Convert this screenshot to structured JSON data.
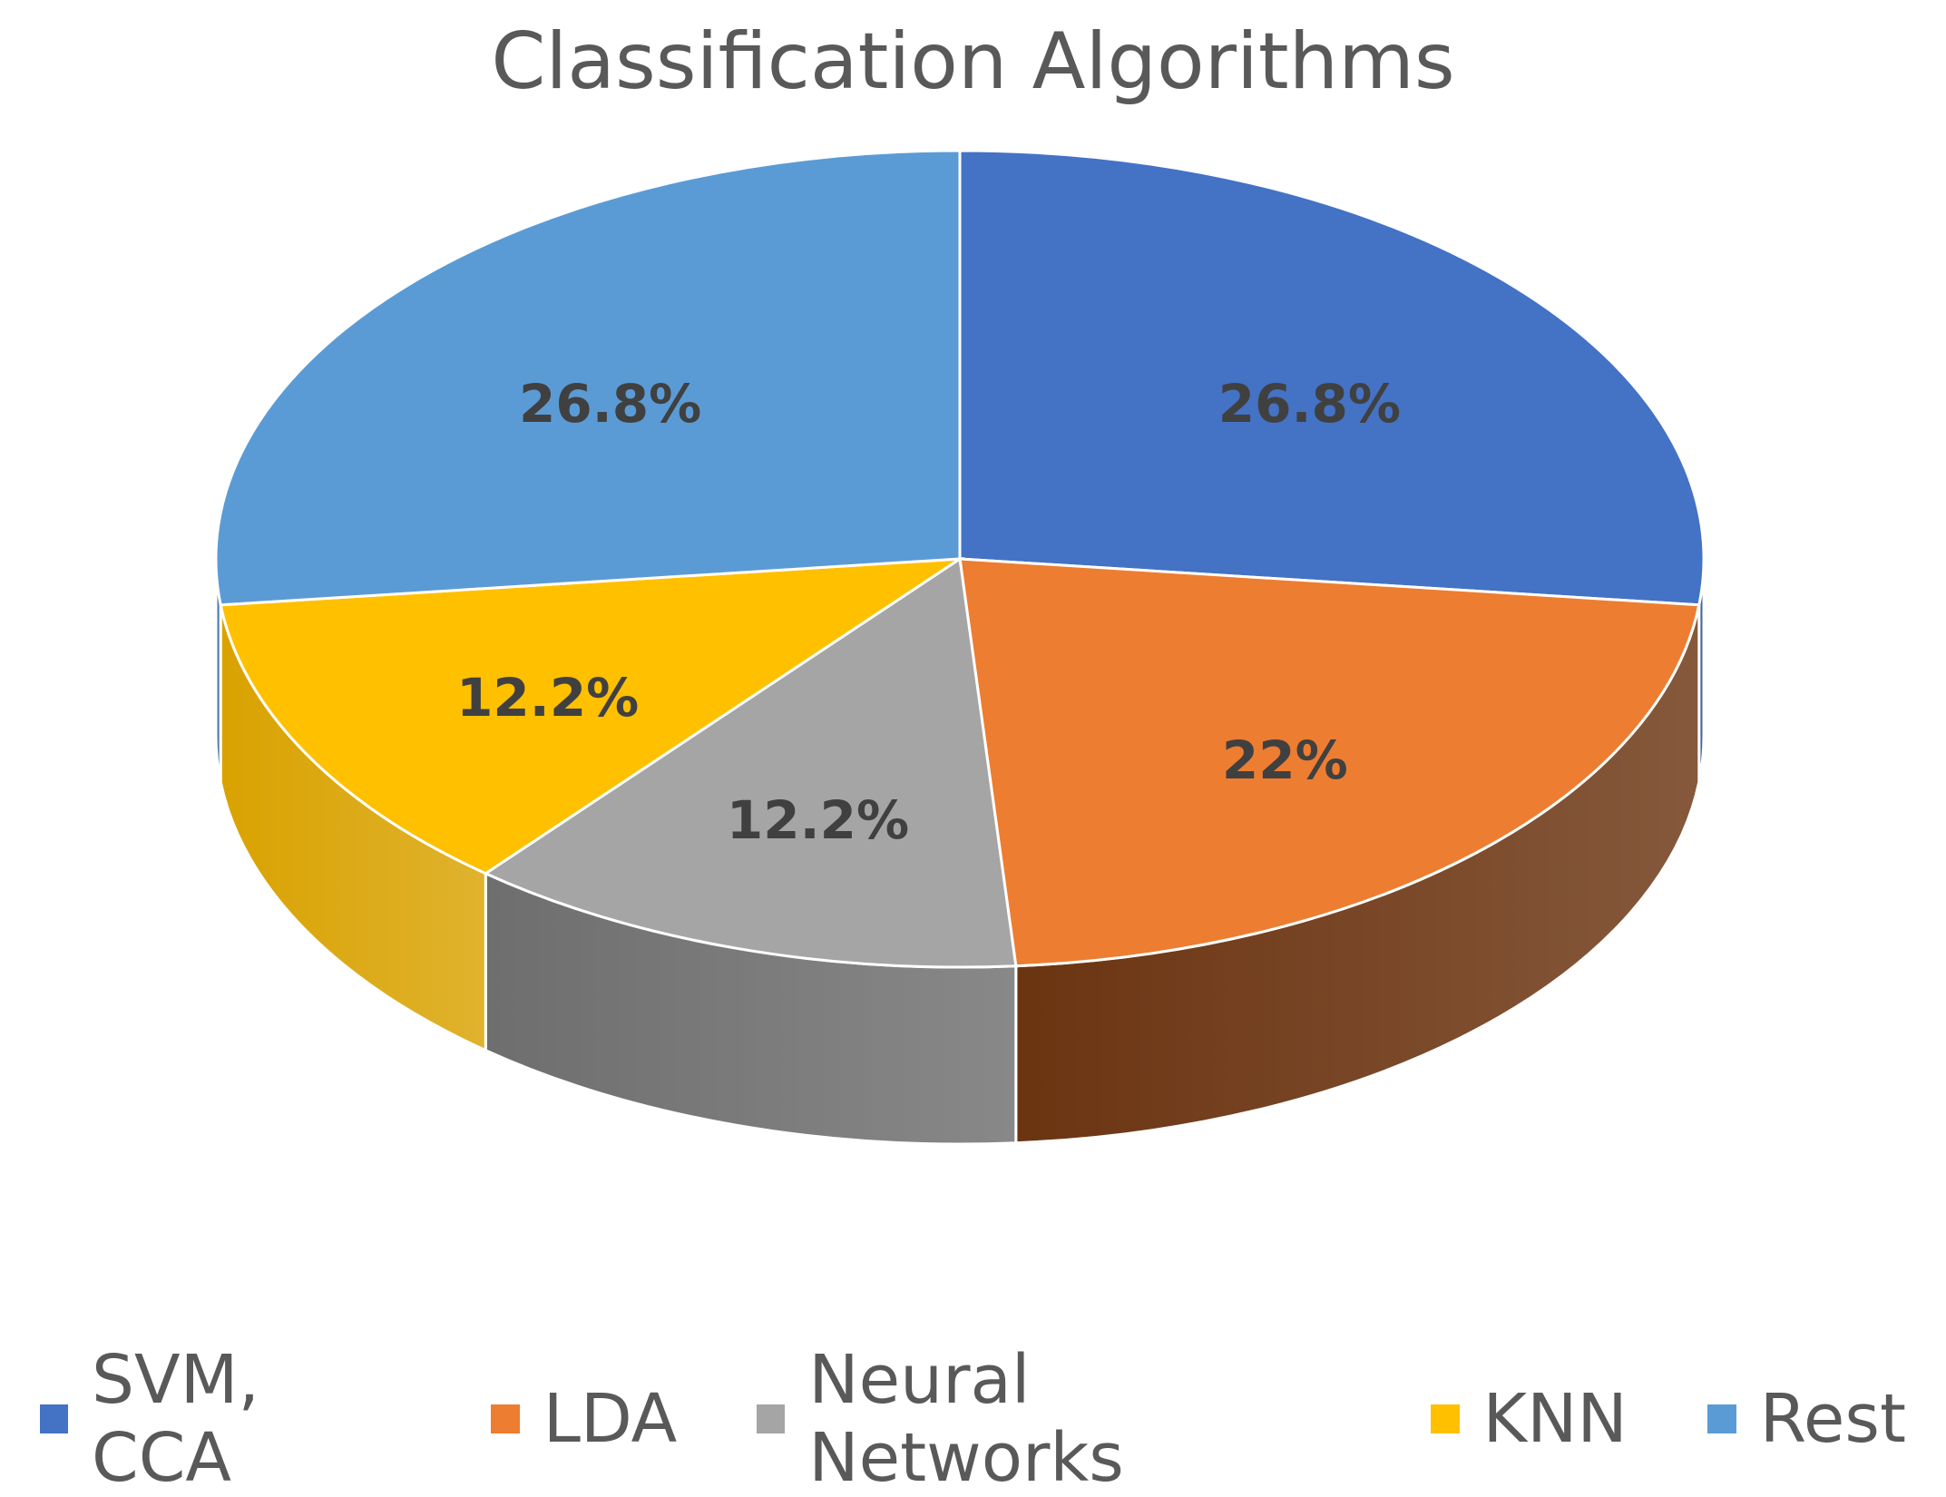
{
  "chart_data": {
    "type": "pie",
    "title": "Classification Algorithms",
    "three_d": true,
    "legend_position": "bottom",
    "slices": [
      {
        "label": "SVM, CCA",
        "value": 26.8,
        "value_label": "26.8%",
        "color": "#4472C4",
        "side_color": "#2F5597"
      },
      {
        "label": "LDA",
        "value": 22,
        "value_label": "22%",
        "color": "#ED7D31",
        "side_color": "#6B3411"
      },
      {
        "label": "Neural Networks",
        "value": 12.2,
        "value_label": "12.2%",
        "color": "#A5A5A5",
        "side_color": "#6E6E6E"
      },
      {
        "label": "KNN",
        "value": 12.2,
        "value_label": "12.2%",
        "color": "#FFC000",
        "side_color": "#D9A200"
      },
      {
        "label": "Rest",
        "value": 26.8,
        "value_label": "26.8%",
        "color": "#5B9BD5",
        "side_color": "#3F73A3"
      }
    ]
  }
}
